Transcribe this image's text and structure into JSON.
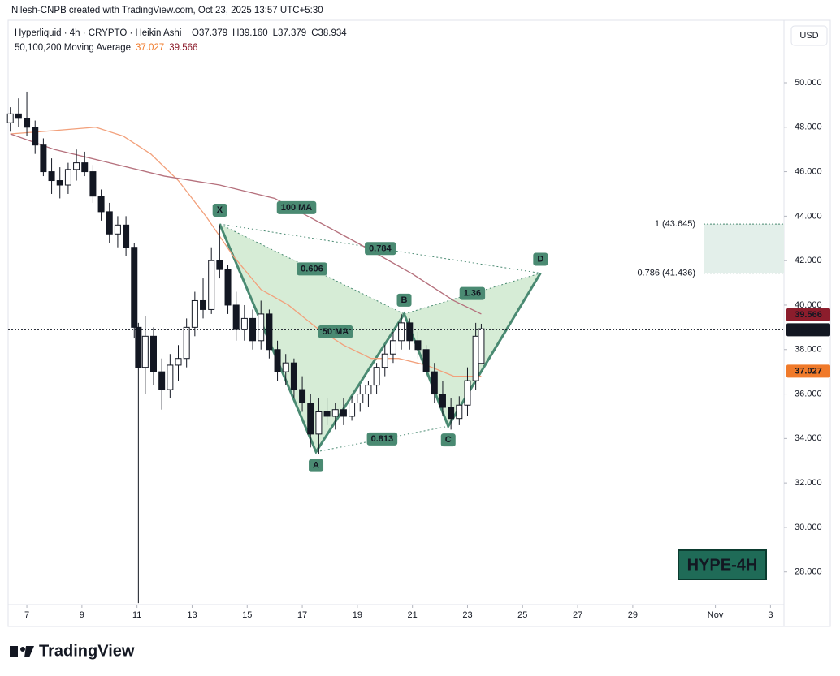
{
  "header": {
    "credit": "Nilesh-CNPB created with TradingView.com, Oct 23, 2025 13:57 UTC+5:30",
    "symbol": "Hyperliquid · 4h · CRYPTO · Heikin Ashi",
    "ohlc": [
      "O37.379",
      "H39.160",
      "L37.379",
      "C38.934"
    ],
    "indicator": "50,100,200 Moving Average",
    "currency": "USD"
  },
  "footer": {
    "brand": "TradingView"
  },
  "chart_data": {
    "type": "candlestick",
    "xlim": [
      6.32,
      34.49
    ],
    "ylim": [
      26.53,
      52.81
    ],
    "xticks": [
      7,
      9,
      11,
      13,
      15,
      17,
      19,
      21,
      23,
      25,
      27,
      29,
      {
        "value": 32,
        "label": "Nov"
      },
      {
        "value": 34,
        "label": "3"
      }
    ],
    "yticks": [
      {
        "value": 28,
        "label": "28.000"
      },
      {
        "value": 30,
        "label": "30.000"
      },
      {
        "value": 32,
        "label": "32.000"
      },
      {
        "value": 34,
        "label": "34.000"
      },
      {
        "value": 36,
        "label": "36.000"
      },
      {
        "value": 38,
        "label": "38.000"
      },
      {
        "value": 40,
        "label": "40.000"
      },
      {
        "value": 42,
        "label": "42.000"
      },
      {
        "value": 44,
        "label": "44.000"
      },
      {
        "value": 46,
        "label": "46.000"
      },
      {
        "value": 48,
        "label": "48.000"
      },
      {
        "value": 50,
        "label": "50.000"
      }
    ],
    "candles": {
      "x": [
        6.4,
        6.7,
        7.0,
        7.3,
        7.6,
        7.9,
        8.2,
        8.5,
        8.8,
        9.1,
        9.4,
        9.7,
        10.0,
        10.3,
        10.6,
        10.9,
        11.05,
        11.3,
        11.6,
        11.9,
        12.2,
        12.5,
        12.8,
        13.1,
        13.4,
        13.7,
        14.0,
        14.3,
        14.6,
        14.9,
        15.2,
        15.5,
        15.8,
        16.1,
        16.4,
        16.7,
        17.0,
        17.3,
        17.6,
        17.9,
        18.2,
        18.5,
        18.8,
        19.1,
        19.4,
        19.7,
        20.0,
        20.3,
        20.6,
        20.9,
        21.2,
        21.5,
        21.8,
        22.1,
        22.4,
        22.7,
        23.0,
        23.3,
        23.5
      ],
      "open": [
        48.2,
        48.6,
        48.4,
        48.0,
        47.2,
        46.0,
        45.6,
        45.4,
        46.1,
        46.4,
        46.0,
        44.9,
        44.2,
        43.2,
        43.6,
        42.6,
        39.0,
        37.2,
        38.6,
        37.0,
        36.2,
        37.3,
        37.6,
        39.0,
        40.2,
        39.8,
        42.0,
        41.6,
        40.0,
        38.9,
        39.4,
        38.4,
        39.6,
        38.0,
        37.0,
        37.4,
        36.2,
        35.6,
        34.2,
        35.2,
        35.0,
        35.3,
        35.0,
        35.6,
        36.0,
        36.4,
        37.2,
        37.8,
        38.4,
        39.2,
        38.4,
        38.0,
        37.0,
        36.0,
        35.4,
        34.9,
        35.5,
        36.6,
        37.379
      ],
      "high": [
        48.9,
        49.3,
        49.6,
        48.3,
        47.5,
        46.6,
        46.2,
        46.4,
        47.0,
        46.9,
        46.3,
        45.2,
        44.6,
        44.0,
        44.0,
        42.8,
        39.2,
        39.5,
        39.0,
        37.6,
        37.8,
        38.2,
        39.4,
        40.6,
        41.2,
        42.6,
        43.6,
        41.8,
        40.6,
        40.0,
        39.8,
        40.2,
        39.8,
        38.4,
        37.8,
        37.6,
        36.8,
        36.0,
        35.8,
        35.8,
        35.6,
        35.8,
        35.9,
        36.4,
        36.6,
        37.4,
        38.2,
        38.8,
        39.6,
        39.4,
        38.8,
        38.2,
        37.4,
        36.6,
        35.8,
        35.9,
        37.2,
        39.2,
        39.16
      ],
      "low": [
        47.8,
        48.0,
        47.6,
        46.8,
        45.8,
        45.0,
        44.8,
        45.0,
        45.6,
        45.8,
        44.6,
        43.8,
        42.8,
        42.6,
        42.2,
        38.5,
        26.6,
        36.0,
        36.4,
        35.3,
        35.8,
        36.6,
        37.2,
        38.6,
        39.4,
        39.6,
        41.2,
        39.6,
        38.4,
        38.4,
        38.0,
        38.0,
        37.6,
        36.6,
        36.4,
        35.8,
        35.2,
        33.6,
        33.3,
        34.6,
        34.4,
        34.6,
        34.8,
        35.2,
        35.4,
        36.0,
        36.8,
        37.4,
        38.0,
        38.0,
        37.6,
        36.8,
        35.6,
        35.0,
        34.4,
        34.6,
        35.0,
        36.2,
        37.379
      ],
      "close": [
        48.6,
        48.4,
        48.0,
        47.2,
        46.0,
        45.6,
        45.4,
        46.1,
        46.4,
        46.0,
        44.9,
        44.2,
        43.2,
        43.6,
        42.6,
        39.0,
        37.2,
        38.6,
        37.0,
        36.2,
        37.3,
        37.6,
        39.0,
        40.2,
        39.8,
        42.0,
        41.6,
        40.0,
        38.9,
        39.4,
        38.4,
        39.6,
        38.0,
        37.0,
        37.4,
        36.2,
        35.6,
        34.2,
        35.2,
        35.0,
        35.3,
        35.0,
        35.6,
        36.0,
        36.4,
        37.2,
        37.8,
        38.4,
        39.2,
        38.4,
        38.0,
        37.0,
        36.0,
        35.4,
        34.9,
        35.5,
        36.6,
        38.6,
        38.934
      ]
    },
    "series": [
      {
        "name": "50 MA",
        "color": "#f2a07b",
        "x": [
          6.4,
          7.5,
          8.5,
          9.5,
          10.5,
          11.5,
          12.5,
          13.5,
          14.5,
          15.5,
          16.5,
          17.5,
          18.5,
          19.5,
          20.5,
          21.5,
          22.5,
          23.5
        ],
        "values": [
          47.7,
          47.8,
          47.9,
          48.0,
          47.6,
          46.8,
          45.6,
          44.0,
          42.2,
          40.7,
          40.0,
          39.0,
          38.2,
          37.6,
          37.6,
          37.3,
          36.8,
          36.8
        ]
      },
      {
        "name": "100 MA",
        "color": "#b5707c",
        "x": [
          6.4,
          8,
          10,
          12,
          14,
          16,
          19,
          21,
          22.5,
          23.5
        ],
        "values": [
          47.7,
          47.0,
          46.4,
          45.8,
          45.4,
          44.8,
          42.8,
          41.4,
          40.2,
          39.6
        ]
      }
    ],
    "ma_values": [
      {
        "value": 37.027,
        "color": "#f07a2a"
      },
      {
        "value": 39.566,
        "color": "#8c1d2c"
      }
    ],
    "last_price": 38.889,
    "pattern": {
      "points": [
        {
          "label": "X",
          "x": 14.0,
          "y": 43.645
        },
        {
          "label": "A",
          "x": 17.5,
          "y": 33.4
        },
        {
          "label": "B",
          "x": 20.7,
          "y": 39.6
        },
        {
          "label": "C",
          "x": 22.3,
          "y": 34.55
        },
        {
          "label": "D",
          "x": 25.65,
          "y": 41.436
        }
      ],
      "ratios": {
        "XB": 0.606,
        "XD": 0.784,
        "BD": 1.36,
        "AC": 0.813
      }
    },
    "fib_levels": [
      {
        "label": "1 (43.645)",
        "value": 43.645
      },
      {
        "label": "0.786 (41.436)",
        "value": 41.436
      }
    ],
    "annotations": [
      "100 MA",
      "50 MA",
      "HYPE-4H"
    ]
  }
}
